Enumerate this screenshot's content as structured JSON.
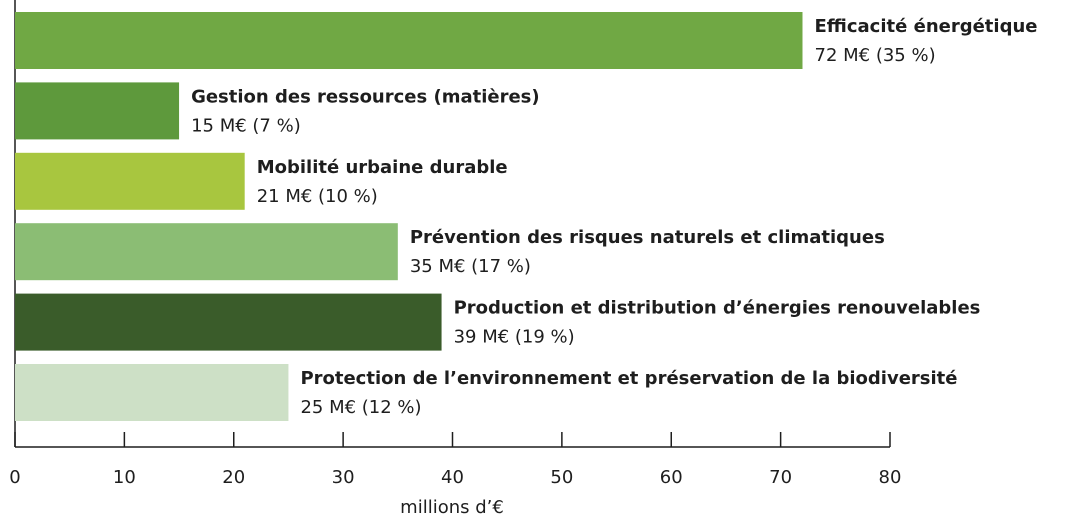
{
  "chart_data": {
    "type": "barh",
    "categories": [
      "Efficacité énergétique",
      "Gestion des ressources (matières)",
      "Mobilité urbaine durable",
      "Prévention des risques naturels et climatiques",
      "Production et distribution d’énergies renouvelables",
      "Protection de l’environnement et préservation de la biodiversité"
    ],
    "values": [
      72,
      15,
      21,
      35,
      39,
      25
    ],
    "value_labels": [
      "72 M€ (35 %)",
      "15 M€ (7 %)",
      "21 M€ (10 %)",
      "35 M€ (17 %)",
      "39 M€ (19 %)",
      "25 M€ (12 %)"
    ],
    "colors": [
      "#70a844",
      "#5e993c",
      "#a8c63f",
      "#8bbd74",
      "#3a5c2a",
      "#cde0c6"
    ],
    "xlabel": "millions d’€",
    "xlim": [
      0,
      80
    ],
    "xticks": [
      0,
      10,
      20,
      30,
      40,
      50,
      60,
      70,
      80
    ]
  }
}
